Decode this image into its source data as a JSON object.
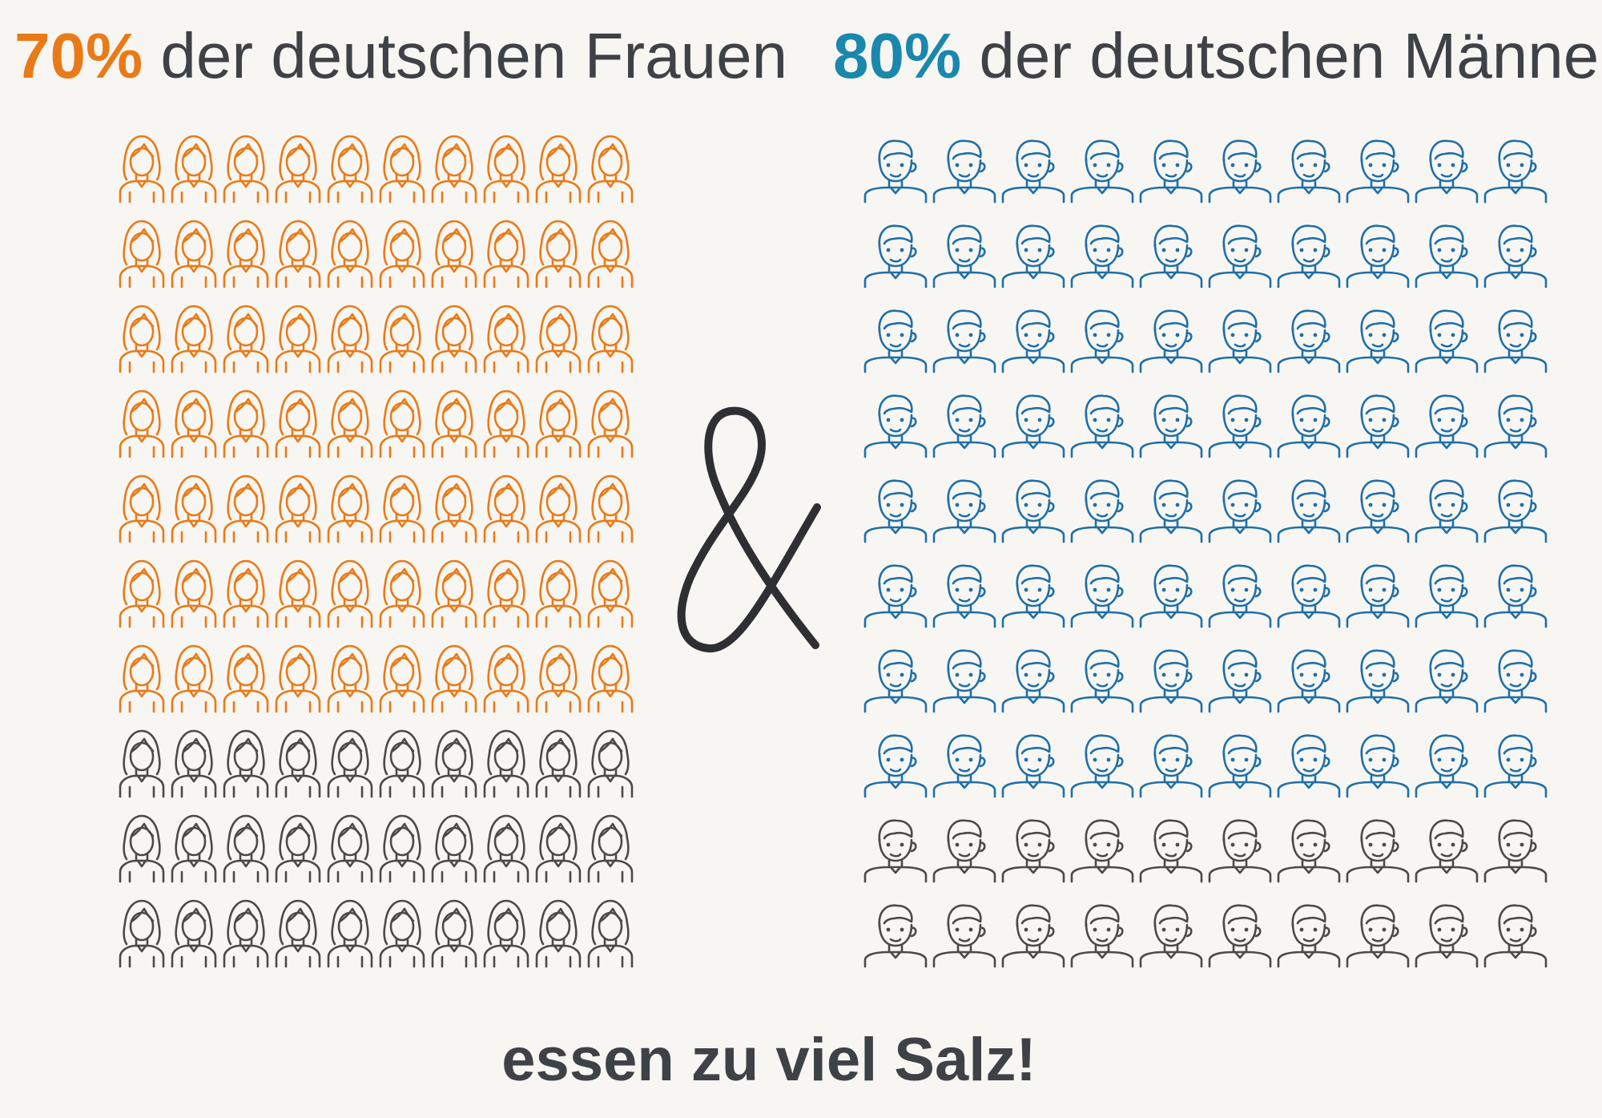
{
  "headline_women": {
    "percent": "70%",
    "text": "der deutschen Frauen"
  },
  "headline_men": {
    "percent": "80%",
    "text": "der deutschen Männer"
  },
  "connector": "&",
  "footer": "essen zu viel Salz!",
  "icon_grid": {
    "women": {
      "icon": "woman-icon",
      "total": 100,
      "highlighted": 70,
      "highlight_color": "#ea7a17",
      "base_color": "#4a4a4a"
    },
    "men": {
      "icon": "man-icon",
      "total": 100,
      "highlighted": 80,
      "highlight_color": "#1f6fa8",
      "base_color": "#4a4a4a"
    }
  },
  "colors": {
    "background": "#f8f6f3",
    "text": "#3e4247",
    "women_accent": "#ea7a17",
    "men_accent": "#1a87ad"
  }
}
